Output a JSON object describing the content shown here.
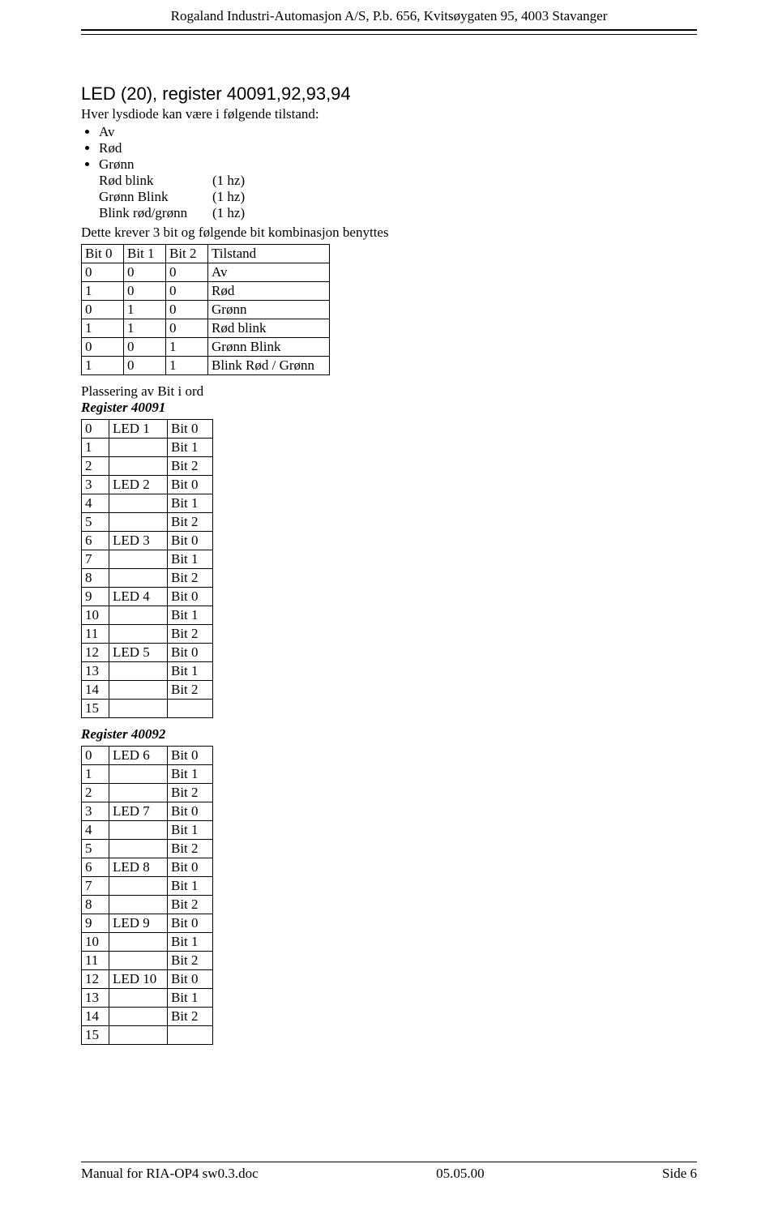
{
  "header": "Rogaland Industri-Automasjon A/S, P.b. 656, Kvitsøygaten 95, 4003 Stavanger",
  "section_title": "LED (20), register 40091,92,93,94",
  "intro": "Hver lysdiode kan være i følgende tilstand:",
  "states_simple": [
    "Av",
    "Rød",
    "Grønn"
  ],
  "states_twocol": [
    {
      "label": "Rød blink",
      "freq": "(1 hz)"
    },
    {
      "label": "Grønn Blink",
      "freq": "(1 hz)"
    },
    {
      "label": "Blink rød/grønn",
      "freq": "(1 hz)"
    }
  ],
  "trailing": "Dette krever 3 bit og følgende bit kombinasjon benyttes",
  "tilstand_table": {
    "columns": [
      "Bit 0",
      "Bit 1",
      "Bit 2",
      "Tilstand"
    ],
    "rows": [
      [
        "0",
        "0",
        "0",
        "Av"
      ],
      [
        "1",
        "0",
        "0",
        "Rød"
      ],
      [
        "0",
        "1",
        "0",
        "Grønn"
      ],
      [
        "1",
        "1",
        "0",
        "Rød blink"
      ],
      [
        "0",
        "0",
        "1",
        "Grønn Blink"
      ],
      [
        "1",
        "0",
        "1",
        "Blink Rød / Grønn"
      ]
    ]
  },
  "plassering": "Plassering av Bit i ord",
  "reg1_title": "Register 40091",
  "reg1": {
    "rows": [
      [
        "0",
        "LED 1",
        "Bit 0"
      ],
      [
        "1",
        "",
        "Bit 1"
      ],
      [
        "2",
        "",
        "Bit 2"
      ],
      [
        "3",
        "LED 2",
        "Bit 0"
      ],
      [
        "4",
        "",
        "Bit 1"
      ],
      [
        "5",
        "",
        "Bit 2"
      ],
      [
        "6",
        "LED 3",
        "Bit 0"
      ],
      [
        "7",
        "",
        "Bit 1"
      ],
      [
        "8",
        "",
        "Bit 2"
      ],
      [
        "9",
        "LED 4",
        "Bit 0"
      ],
      [
        "10",
        "",
        "Bit 1"
      ],
      [
        "11",
        "",
        "Bit 2"
      ],
      [
        "12",
        "LED 5",
        "Bit 0"
      ],
      [
        "13",
        "",
        "Bit 1"
      ],
      [
        "14",
        "",
        "Bit 2"
      ],
      [
        "15",
        "",
        ""
      ]
    ]
  },
  "reg2_title": "Register 40092",
  "reg2": {
    "rows": [
      [
        "0",
        "LED 6",
        "Bit 0"
      ],
      [
        "1",
        "",
        "Bit 1"
      ],
      [
        "2",
        "",
        "Bit 2"
      ],
      [
        "3",
        "LED 7",
        "Bit 0"
      ],
      [
        "4",
        "",
        "Bit 1"
      ],
      [
        "5",
        "",
        "Bit 2"
      ],
      [
        "6",
        "LED 8",
        "Bit 0"
      ],
      [
        "7",
        "",
        "Bit 1"
      ],
      [
        "8",
        "",
        "Bit 2"
      ],
      [
        "9",
        "LED 9",
        "Bit 0"
      ],
      [
        "10",
        "",
        "Bit 1"
      ],
      [
        "11",
        "",
        "Bit 2"
      ],
      [
        "12",
        "LED 10",
        "Bit 0"
      ],
      [
        "13",
        "",
        "Bit 1"
      ],
      [
        "14",
        "",
        "Bit 2"
      ],
      [
        "15",
        "",
        ""
      ]
    ]
  },
  "footer": {
    "left": "Manual for RIA-OP4 sw0.3.doc",
    "center": "05.05.00",
    "right": "Side  6"
  }
}
